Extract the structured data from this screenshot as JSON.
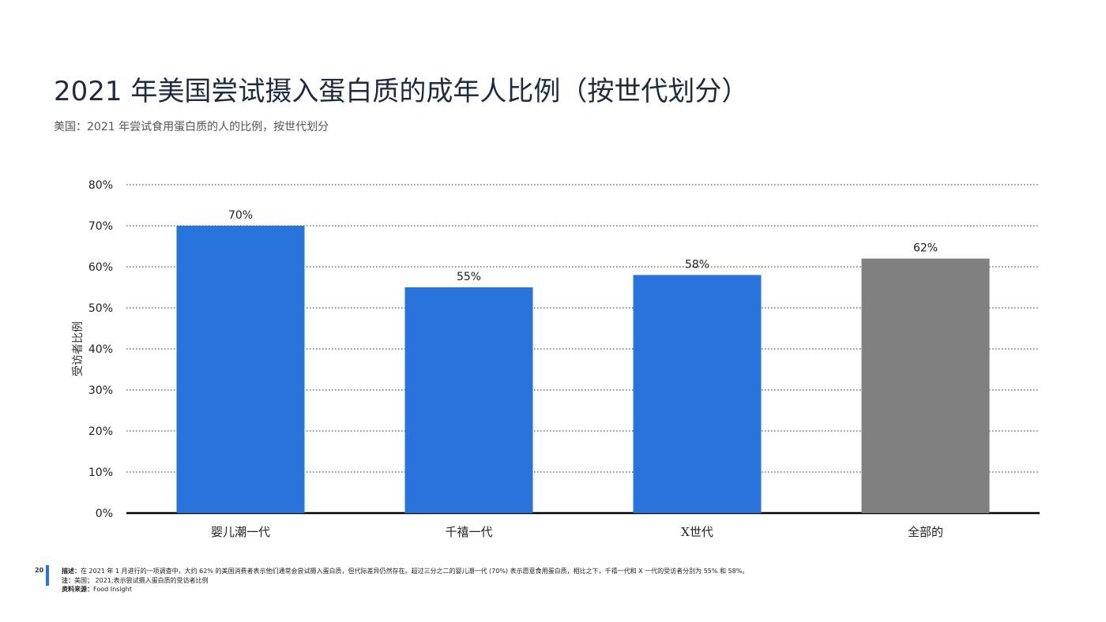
{
  "page": {
    "title": "2021 年美国尝试摄入蛋白质的成年人比例（按世代划分）",
    "subtitle": "美国：2021 年尝试食用蛋白质的人的比例，按世代划分",
    "page_number": "20",
    "description_label": "描述：",
    "description": "在 2021 年 1 月进行的一项调查中，大约 62% 的美国消费者表示他们通常会尝试摄入蛋白质，但代际差异仍然存在。超过三分之二的婴儿潮一代 (70%) 表示愿意食用蛋白质，相比之下，千禧一代和 X 一代的受访者分别为 55% 和 58%。",
    "note_label": "注：",
    "note": "美国； 2021;表示尝试摄入蛋白质的受访者比例",
    "source_label": "资料来源：",
    "source": "Food Insight"
  },
  "colors": {
    "bar_primary": "#2874dc",
    "bar_total": "#808080",
    "grid": "#333333",
    "accent": "#2874dc"
  },
  "chart_data": {
    "type": "bar",
    "categories": [
      "婴儿潮一代",
      "千禧一代",
      "X世代",
      "全部的"
    ],
    "values": [
      70,
      55,
      58,
      62
    ],
    "data_labels": [
      "70%",
      "55%",
      "58%",
      "62%"
    ],
    "bar_colors": [
      "#2874dc",
      "#2874dc",
      "#2874dc",
      "#808080"
    ],
    "ylabel": "受访者比例",
    "xlabel": "",
    "ylim": [
      0,
      80
    ],
    "yticks": [
      0,
      10,
      20,
      30,
      40,
      50,
      60,
      70,
      80
    ],
    "ytick_labels": [
      "0%",
      "10%",
      "20%",
      "30%",
      "40%",
      "50%",
      "60%",
      "70%",
      "80%"
    ],
    "grid": true,
    "grid_style": "dotted"
  }
}
